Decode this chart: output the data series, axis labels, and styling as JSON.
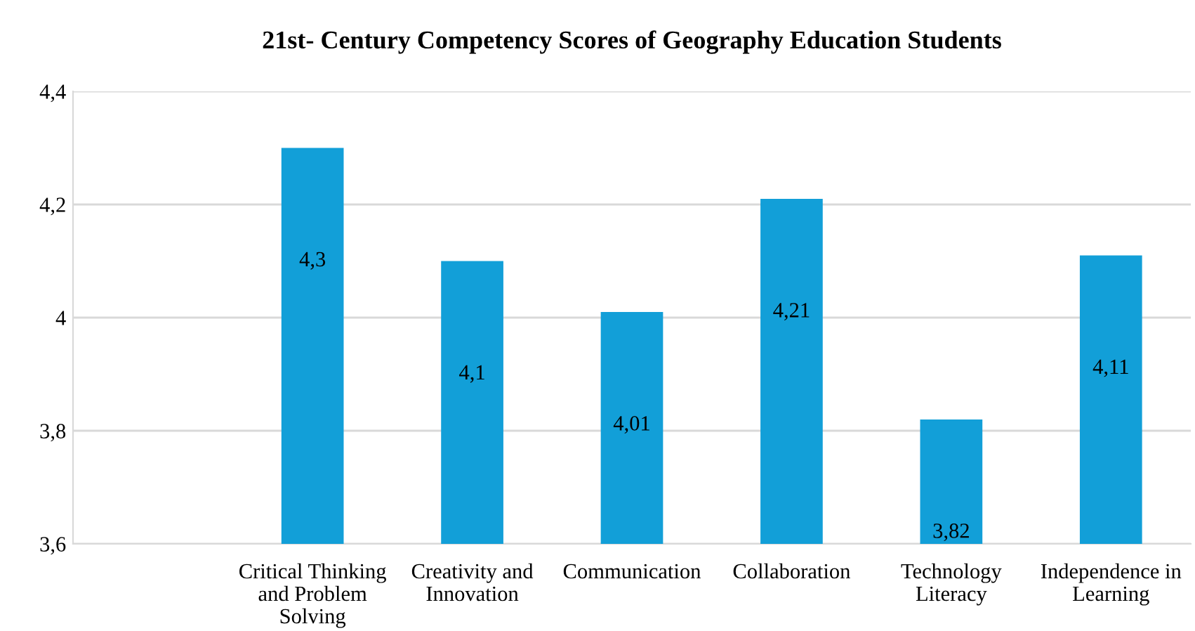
{
  "chart_data": {
    "type": "bar",
    "title": "21st- Century Competency Scores of Geography Education Students",
    "categories": [
      null,
      "Critical Thinking\nand Problem\nSolving",
      "Creativity and\nInnovation",
      "Communication",
      "Collaboration",
      "Technology\nLiteracy",
      "Independence in\nLearning"
    ],
    "values": [
      null,
      4.3,
      4.1,
      4.01,
      4.21,
      3.82,
      4.11
    ],
    "value_labels": [
      null,
      "4,3",
      "4,1",
      "4,01",
      "4,21",
      "3,82",
      "4,11"
    ],
    "color": "#129fd8",
    "ylim": [
      3.6,
      4.4
    ],
    "yticks": [
      {
        "value": 3.6,
        "label": "3,6"
      },
      {
        "value": 3.8,
        "label": "3,8"
      },
      4,
      {
        "value": 4.2,
        "label": "4,2"
      },
      {
        "value": 4.4,
        "label": "4,4"
      }
    ],
    "grid": "y",
    "legend": false
  }
}
